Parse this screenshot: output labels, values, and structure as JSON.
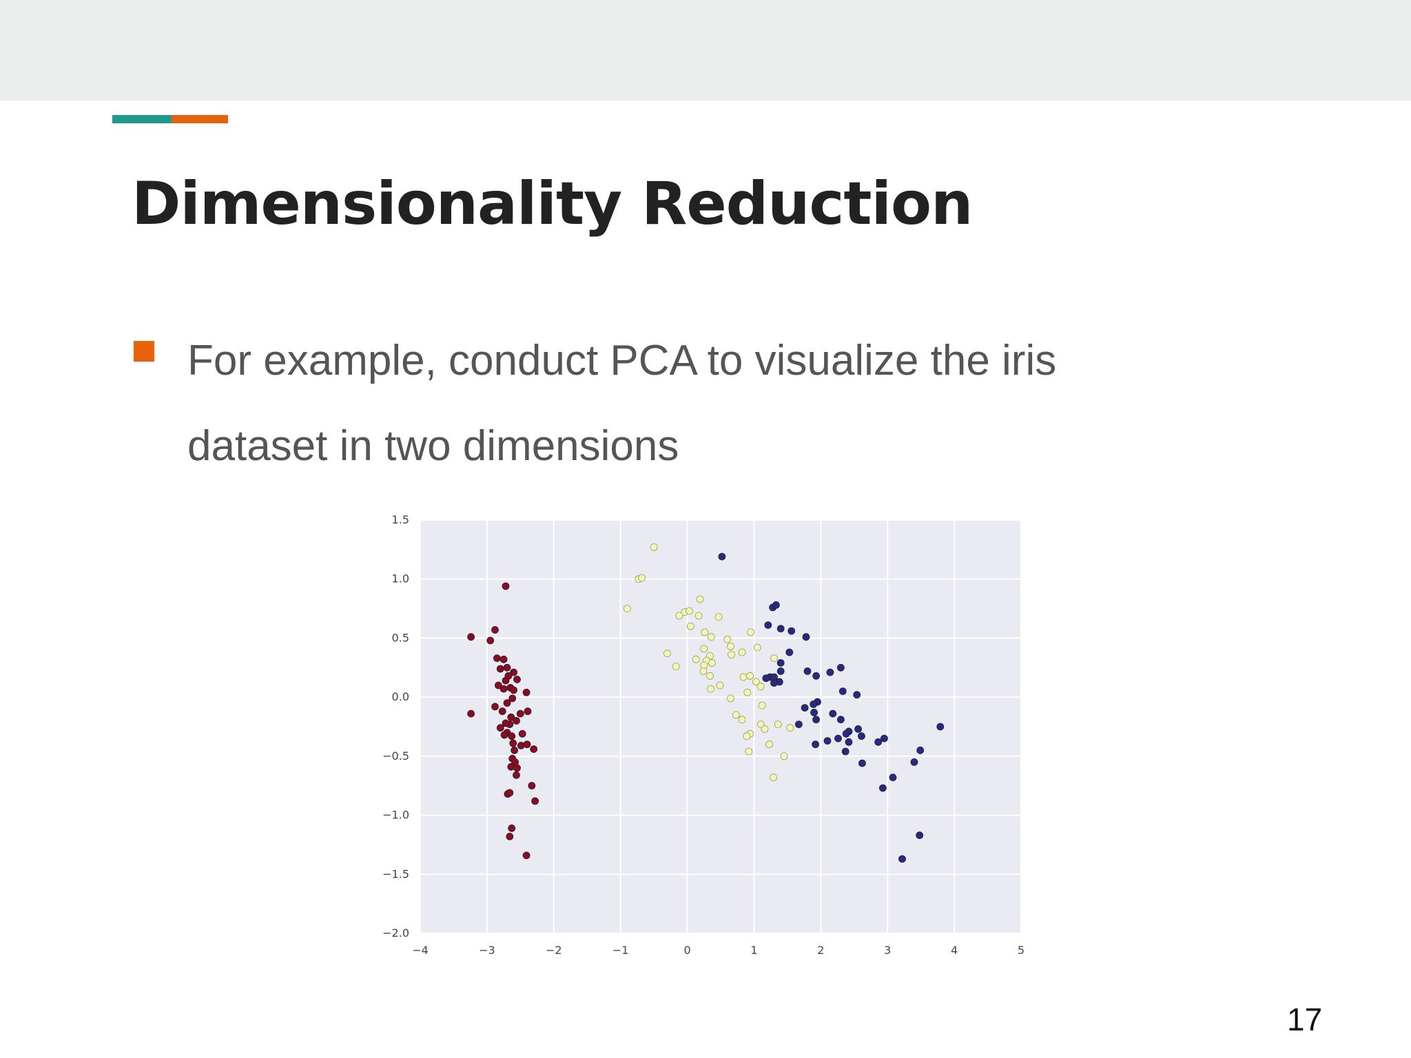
{
  "slide": {
    "title": "Dimensionality Reduction",
    "bullet": "For example, conduct PCA to visualize the iris dataset in two dimensions",
    "page_number": "17"
  },
  "colors": {
    "accent_teal": "#1e9a8b",
    "accent_orange": "#e8620c",
    "plot_background": "#eaeaf2",
    "setosa": "#8b0a26",
    "versicolor": "#f4f6b8",
    "virginica": "#262a85"
  },
  "chart_data": {
    "type": "scatter",
    "title": "",
    "xlabel": "",
    "ylabel": "",
    "xlim": [
      -4,
      5
    ],
    "ylim": [
      -2.0,
      1.5
    ],
    "x_ticks": [
      "−4",
      "−3",
      "−2",
      "−1",
      "0",
      "1",
      "2",
      "3",
      "4",
      "5"
    ],
    "y_ticks": [
      "1.5",
      "1.0",
      "0.5",
      "0.0",
      "−0.5",
      "−1.0",
      "−1.5",
      "−2.0"
    ],
    "grid": true,
    "legend": "none",
    "series": [
      {
        "color": "#8b0a26",
        "points": [
          [
            -2.72,
            0.94
          ],
          [
            -2.88,
            0.57
          ],
          [
            -3.24,
            0.51
          ],
          [
            -2.95,
            0.48
          ],
          [
            -2.85,
            0.33
          ],
          [
            -2.75,
            0.32
          ],
          [
            -2.8,
            0.24
          ],
          [
            -2.7,
            0.25
          ],
          [
            -2.6,
            0.21
          ],
          [
            -2.68,
            0.18
          ],
          [
            -2.72,
            0.14
          ],
          [
            -2.55,
            0.15
          ],
          [
            -2.83,
            0.1
          ],
          [
            -2.65,
            0.08
          ],
          [
            -2.75,
            0.07
          ],
          [
            -2.6,
            0.06
          ],
          [
            -2.41,
            0.04
          ],
          [
            -2.62,
            -0.01
          ],
          [
            -2.7,
            -0.05
          ],
          [
            -3.24,
            -0.14
          ],
          [
            -2.88,
            -0.08
          ],
          [
            -2.77,
            -0.12
          ],
          [
            -2.64,
            -0.17
          ],
          [
            -2.5,
            -0.14
          ],
          [
            -2.39,
            -0.12
          ],
          [
            -2.66,
            -0.23
          ],
          [
            -2.56,
            -0.2
          ],
          [
            -2.8,
            -0.26
          ],
          [
            -2.7,
            -0.3
          ],
          [
            -2.63,
            -0.33
          ],
          [
            -2.74,
            -0.32
          ],
          [
            -2.47,
            -0.31
          ],
          [
            -2.61,
            -0.39
          ],
          [
            -2.49,
            -0.41
          ],
          [
            -2.4,
            -0.4
          ],
          [
            -2.3,
            -0.44
          ],
          [
            -2.59,
            -0.45
          ],
          [
            -2.62,
            -0.52
          ],
          [
            -2.58,
            -0.55
          ],
          [
            -2.64,
            -0.59
          ],
          [
            -2.56,
            -0.66
          ],
          [
            -2.33,
            -0.75
          ],
          [
            -2.69,
            -0.82
          ],
          [
            -2.66,
            -0.81
          ],
          [
            -2.28,
            -0.88
          ],
          [
            -2.63,
            -1.11
          ],
          [
            -2.66,
            -1.18
          ],
          [
            -2.41,
            -1.34
          ],
          [
            -2.55,
            -0.6
          ],
          [
            -2.72,
            -0.22
          ]
        ]
      },
      {
        "color": "#f4f6b8",
        "points": [
          [
            -0.5,
            1.27
          ],
          [
            -0.73,
            1.0
          ],
          [
            -0.68,
            1.01
          ],
          [
            -0.9,
            0.75
          ],
          [
            0.19,
            0.83
          ],
          [
            -0.04,
            0.72
          ],
          [
            0.03,
            0.73
          ],
          [
            -0.12,
            0.69
          ],
          [
            0.17,
            0.69
          ],
          [
            0.47,
            0.68
          ],
          [
            0.05,
            0.6
          ],
          [
            0.26,
            0.55
          ],
          [
            0.95,
            0.55
          ],
          [
            0.36,
            0.51
          ],
          [
            0.6,
            0.49
          ],
          [
            0.65,
            0.43
          ],
          [
            1.05,
            0.42
          ],
          [
            0.25,
            0.41
          ],
          [
            0.82,
            0.38
          ],
          [
            0.66,
            0.36
          ],
          [
            -0.3,
            0.37
          ],
          [
            0.34,
            0.35
          ],
          [
            0.29,
            0.31
          ],
          [
            0.13,
            0.32
          ],
          [
            0.25,
            0.27
          ],
          [
            0.37,
            0.29
          ],
          [
            0.24,
            0.22
          ],
          [
            1.3,
            0.33
          ],
          [
            -0.17,
            0.26
          ],
          [
            0.34,
            0.18
          ],
          [
            0.84,
            0.17
          ],
          [
            0.94,
            0.18
          ],
          [
            1.03,
            0.13
          ],
          [
            1.1,
            0.09
          ],
          [
            0.49,
            0.1
          ],
          [
            0.35,
            0.07
          ],
          [
            0.9,
            0.04
          ],
          [
            0.65,
            -0.01
          ],
          [
            1.12,
            -0.07
          ],
          [
            0.73,
            -0.15
          ],
          [
            0.82,
            -0.19
          ],
          [
            1.54,
            -0.26
          ],
          [
            1.36,
            -0.23
          ],
          [
            1.1,
            -0.23
          ],
          [
            1.16,
            -0.27
          ],
          [
            0.94,
            -0.31
          ],
          [
            0.89,
            -0.33
          ],
          [
            1.23,
            -0.4
          ],
          [
            0.92,
            -0.46
          ],
          [
            1.45,
            -0.5
          ],
          [
            1.29,
            -0.68
          ]
        ]
      },
      {
        "color": "#262a85",
        "points": [
          [
            0.52,
            1.19
          ],
          [
            1.28,
            0.76
          ],
          [
            1.33,
            0.78
          ],
          [
            1.21,
            0.61
          ],
          [
            1.4,
            0.58
          ],
          [
            1.56,
            0.56
          ],
          [
            1.78,
            0.51
          ],
          [
            1.53,
            0.38
          ],
          [
            1.4,
            0.29
          ],
          [
            1.4,
            0.22
          ],
          [
            1.8,
            0.22
          ],
          [
            1.93,
            0.18
          ],
          [
            2.14,
            0.21
          ],
          [
            2.3,
            0.25
          ],
          [
            1.24,
            0.17
          ],
          [
            1.3,
            0.17
          ],
          [
            1.18,
            0.16
          ],
          [
            1.38,
            0.13
          ],
          [
            1.3,
            0.12
          ],
          [
            2.33,
            0.05
          ],
          [
            2.54,
            0.02
          ],
          [
            1.95,
            -0.04
          ],
          [
            1.89,
            -0.06
          ],
          [
            1.76,
            -0.09
          ],
          [
            1.9,
            -0.13
          ],
          [
            2.18,
            -0.14
          ],
          [
            2.3,
            -0.19
          ],
          [
            1.93,
            -0.19
          ],
          [
            1.67,
            -0.23
          ],
          [
            2.42,
            -0.29
          ],
          [
            2.56,
            -0.27
          ],
          [
            2.86,
            -0.38
          ],
          [
            2.95,
            -0.35
          ],
          [
            2.61,
            -0.33
          ],
          [
            2.38,
            -0.31
          ],
          [
            2.26,
            -0.35
          ],
          [
            2.42,
            -0.38
          ],
          [
            2.1,
            -0.37
          ],
          [
            1.92,
            -0.4
          ],
          [
            2.37,
            -0.46
          ],
          [
            3.79,
            -0.25
          ],
          [
            3.49,
            -0.45
          ],
          [
            3.4,
            -0.55
          ],
          [
            2.62,
            -0.56
          ],
          [
            3.08,
            -0.68
          ],
          [
            2.93,
            -0.77
          ],
          [
            3.48,
            -1.17
          ],
          [
            3.22,
            -1.37
          ]
        ]
      }
    ]
  }
}
